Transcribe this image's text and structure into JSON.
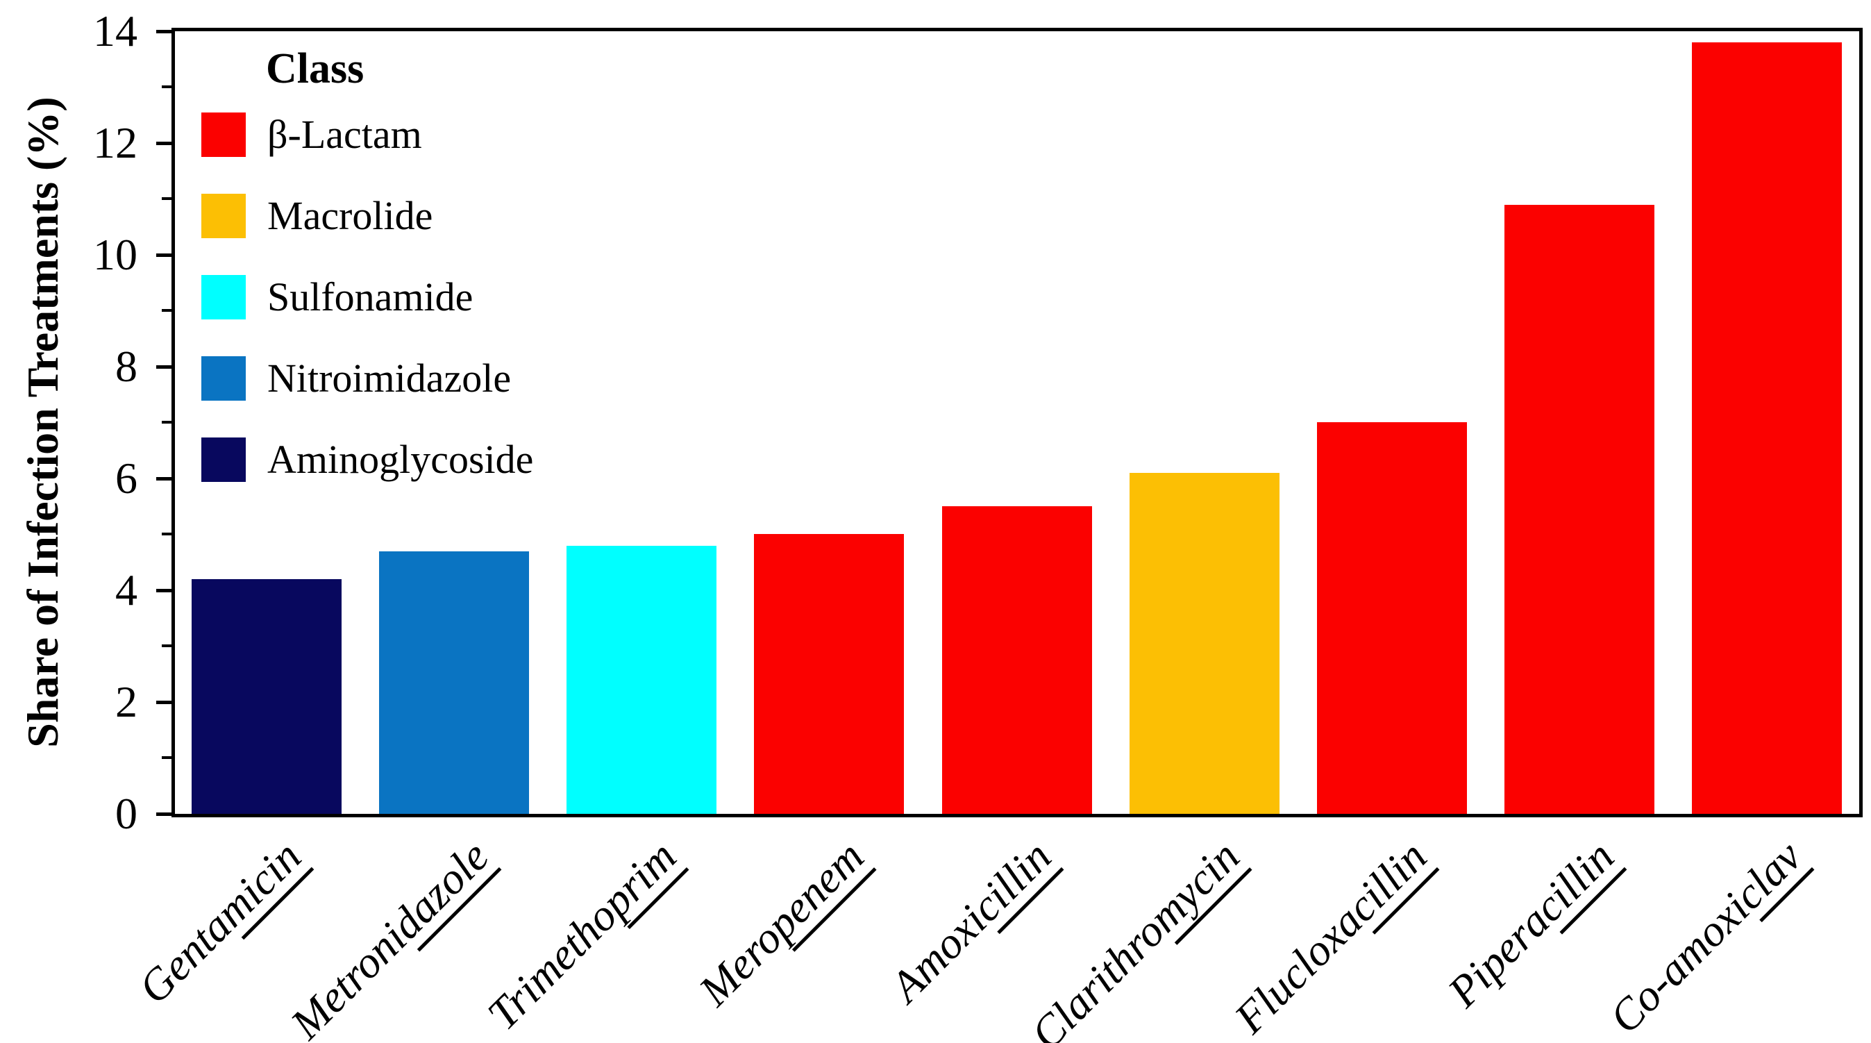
{
  "chart_data": {
    "type": "bar",
    "title": "",
    "xlabel": "",
    "ylabel": "Share of Infection Treatments (%)",
    "ylim": [
      0,
      14
    ],
    "yticks_major": [
      0,
      2,
      4,
      6,
      8,
      10,
      12,
      14
    ],
    "yticks_minor": [
      1,
      3,
      5,
      7,
      9,
      11,
      13
    ],
    "grid": "off",
    "legend_position": "upper-left-inside",
    "categories": [
      "Gentamicin",
      "Metronidazole",
      "Trimethoprim",
      "Meropenem",
      "Amoxicillin",
      "Clarithromycin",
      "Flucloxacillin",
      "Piperacillin",
      "Co-amoxiclav"
    ],
    "values": [
      4.2,
      4.7,
      4.8,
      5.0,
      5.5,
      6.1,
      7.0,
      10.9,
      13.8
    ]
  },
  "colors": {
    "beta_lactam": "#fb0100",
    "macrolide": "#fcbf04",
    "sulfonamide": "#00ffff",
    "nitroimidazole": "#0a74c2",
    "aminoglycoside": "#08085e",
    "axis": "#000000",
    "background": "#ffffff"
  },
  "legend": {
    "title": "Class",
    "items": [
      {
        "label": "β-Lactam",
        "color": "#fb0100"
      },
      {
        "label": "Macrolide",
        "color": "#fcbf04"
      },
      {
        "label": "Sulfonamide",
        "color": "#00ffff"
      },
      {
        "label": "Nitroimidazole",
        "color": "#0a74c2"
      },
      {
        "label": "Aminoglycoside",
        "color": "#08085e"
      }
    ]
  },
  "y_axis": {
    "title": "Share of Infection Treatments (%)",
    "tick_labels": [
      "0",
      "2",
      "4",
      "6",
      "8",
      "10",
      "12",
      "14"
    ]
  },
  "bars": [
    {
      "name": "Gentamicin",
      "prefix": "Genta",
      "suffix": "micin",
      "value": 4.2,
      "class": "Aminoglycoside",
      "color": "#08085e"
    },
    {
      "name": "Metronidazole",
      "prefix": "Metroni",
      "suffix": "dazole",
      "value": 4.7,
      "class": "Nitroimidazole",
      "color": "#0a74c2"
    },
    {
      "name": "Trimethoprim",
      "prefix": "Trimetho",
      "suffix": "prim",
      "value": 4.8,
      "class": "Sulfonamide",
      "color": "#00ffff"
    },
    {
      "name": "Meropenem",
      "prefix": "Mero",
      "suffix": "penem",
      "value": 5.0,
      "class": "β-Lactam",
      "color": "#fb0100"
    },
    {
      "name": "Amoxicillin",
      "prefix": "Amoxi",
      "suffix": "cillin",
      "value": 5.5,
      "class": "β-Lactam",
      "color": "#fb0100"
    },
    {
      "name": "Clarithromycin",
      "prefix": "Clarithro",
      "suffix": "mycin",
      "value": 6.1,
      "class": "Macrolide",
      "color": "#fcbf04"
    },
    {
      "name": "Flucloxacillin",
      "prefix": "Flucloxa",
      "suffix": "cillin",
      "value": 7.0,
      "class": "β-Lactam",
      "color": "#fb0100"
    },
    {
      "name": "Piperacillin",
      "prefix": "Pipera",
      "suffix": "cillin",
      "value": 10.9,
      "class": "β-Lactam",
      "color": "#fb0100"
    },
    {
      "name": "Co-amoxiclav",
      "prefix": "Co-amoxi",
      "suffix": "clav",
      "value": 13.8,
      "class": "β-Lactam",
      "color": "#fb0100"
    }
  ]
}
